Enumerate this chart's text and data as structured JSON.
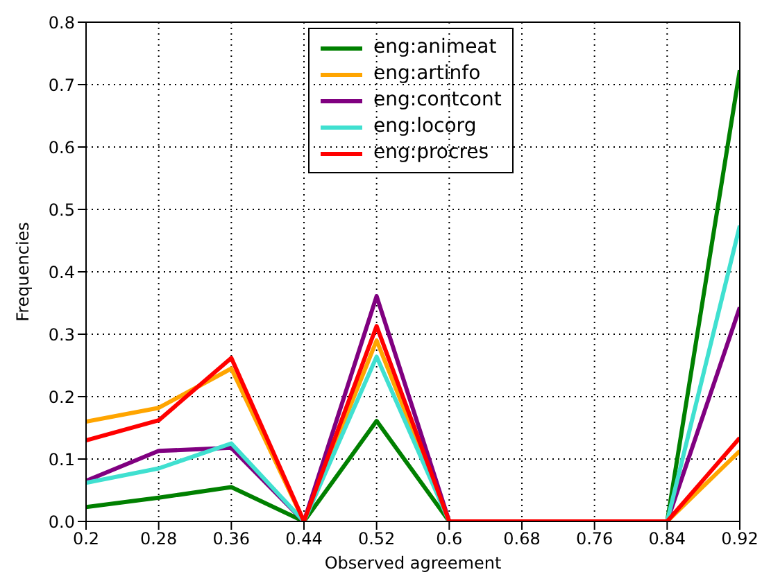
{
  "chart_data": {
    "type": "line",
    "xlabel": "Observed agreement",
    "ylabel": "Frequencies",
    "x": [
      0.2,
      0.28,
      0.36,
      0.44,
      0.52,
      0.6,
      0.68,
      0.76,
      0.84,
      0.92
    ],
    "series": [
      {
        "name": "eng:animeat",
        "color": "#008000",
        "values": [
          0.023,
          0.038,
          0.055,
          0,
          0.161,
          0,
          0,
          0,
          0,
          0.723
        ]
      },
      {
        "name": "eng:artinfo",
        "color": "#ffa500",
        "values": [
          0.16,
          0.182,
          0.245,
          0,
          0.29,
          0,
          0,
          0,
          0,
          0.113
        ]
      },
      {
        "name": "eng:contcont",
        "color": "#800080",
        "values": [
          0.065,
          0.113,
          0.118,
          0,
          0.361,
          0,
          0,
          0,
          0,
          0.343
        ]
      },
      {
        "name": "eng:locorg",
        "color": "#40e0d0",
        "values": [
          0.062,
          0.085,
          0.125,
          0,
          0.264,
          0,
          0,
          0,
          0,
          0.474
        ]
      },
      {
        "name": "eng:procres",
        "color": "#ff0000",
        "values": [
          0.13,
          0.162,
          0.262,
          0,
          0.313,
          0,
          0,
          0,
          0,
          0.134
        ]
      }
    ],
    "xlim": [
      0.2,
      0.92
    ],
    "xticks": [
      0.2,
      0.28,
      0.36,
      0.44,
      0.52,
      0.6,
      0.68,
      0.76,
      0.84,
      0.92
    ],
    "ylim": [
      0,
      0.8
    ],
    "yticks": [
      {
        "value": 0,
        "label": "0.0"
      },
      0.1,
      0.2,
      0.3,
      0.4,
      0.5,
      0.6,
      0.7,
      0.8
    ],
    "grid": true,
    "legend": "top",
    "marker": "none",
    "line_style": "solid"
  }
}
